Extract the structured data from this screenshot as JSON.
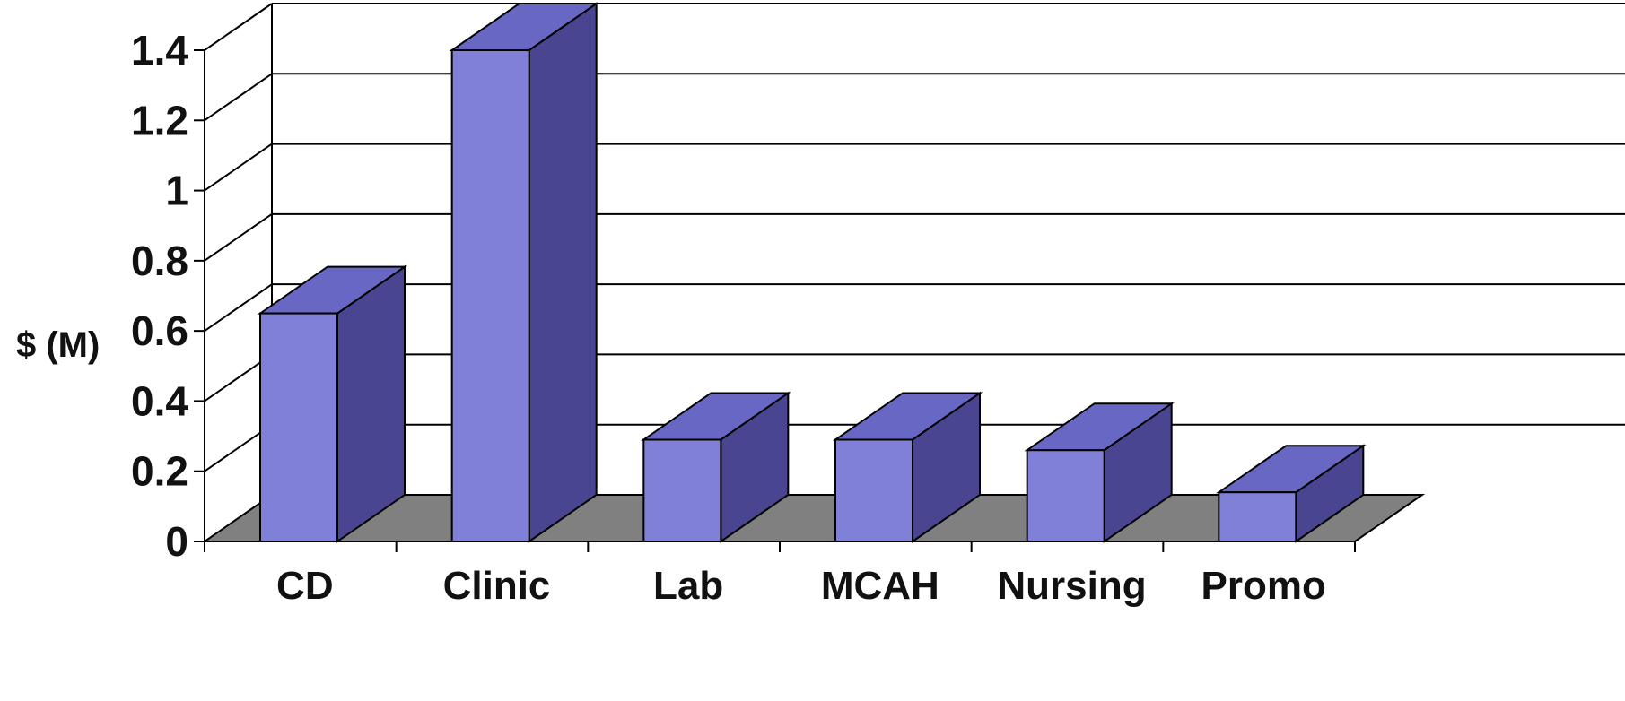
{
  "chart_data": {
    "type": "bar",
    "categories": [
      "CD",
      "Clinic",
      "Lab",
      "MCAH",
      "Nursing",
      "Promo"
    ],
    "values": [
      0.65,
      1.4,
      0.29,
      0.29,
      0.26,
      0.14
    ],
    "ylabel": "$ (M)",
    "ylim": [
      0,
      1.4
    ],
    "yticks": [
      "0",
      "0.2",
      "0.4",
      "0.6",
      "0.8",
      "1",
      "1.2",
      "1.4"
    ],
    "grid": true,
    "style": "3d-column",
    "colors": {
      "bar_front": "#8080d8",
      "bar_side": "#4a4590",
      "bar_top": "#6868c4",
      "floor": "#808080",
      "gridline": "#000000"
    }
  }
}
